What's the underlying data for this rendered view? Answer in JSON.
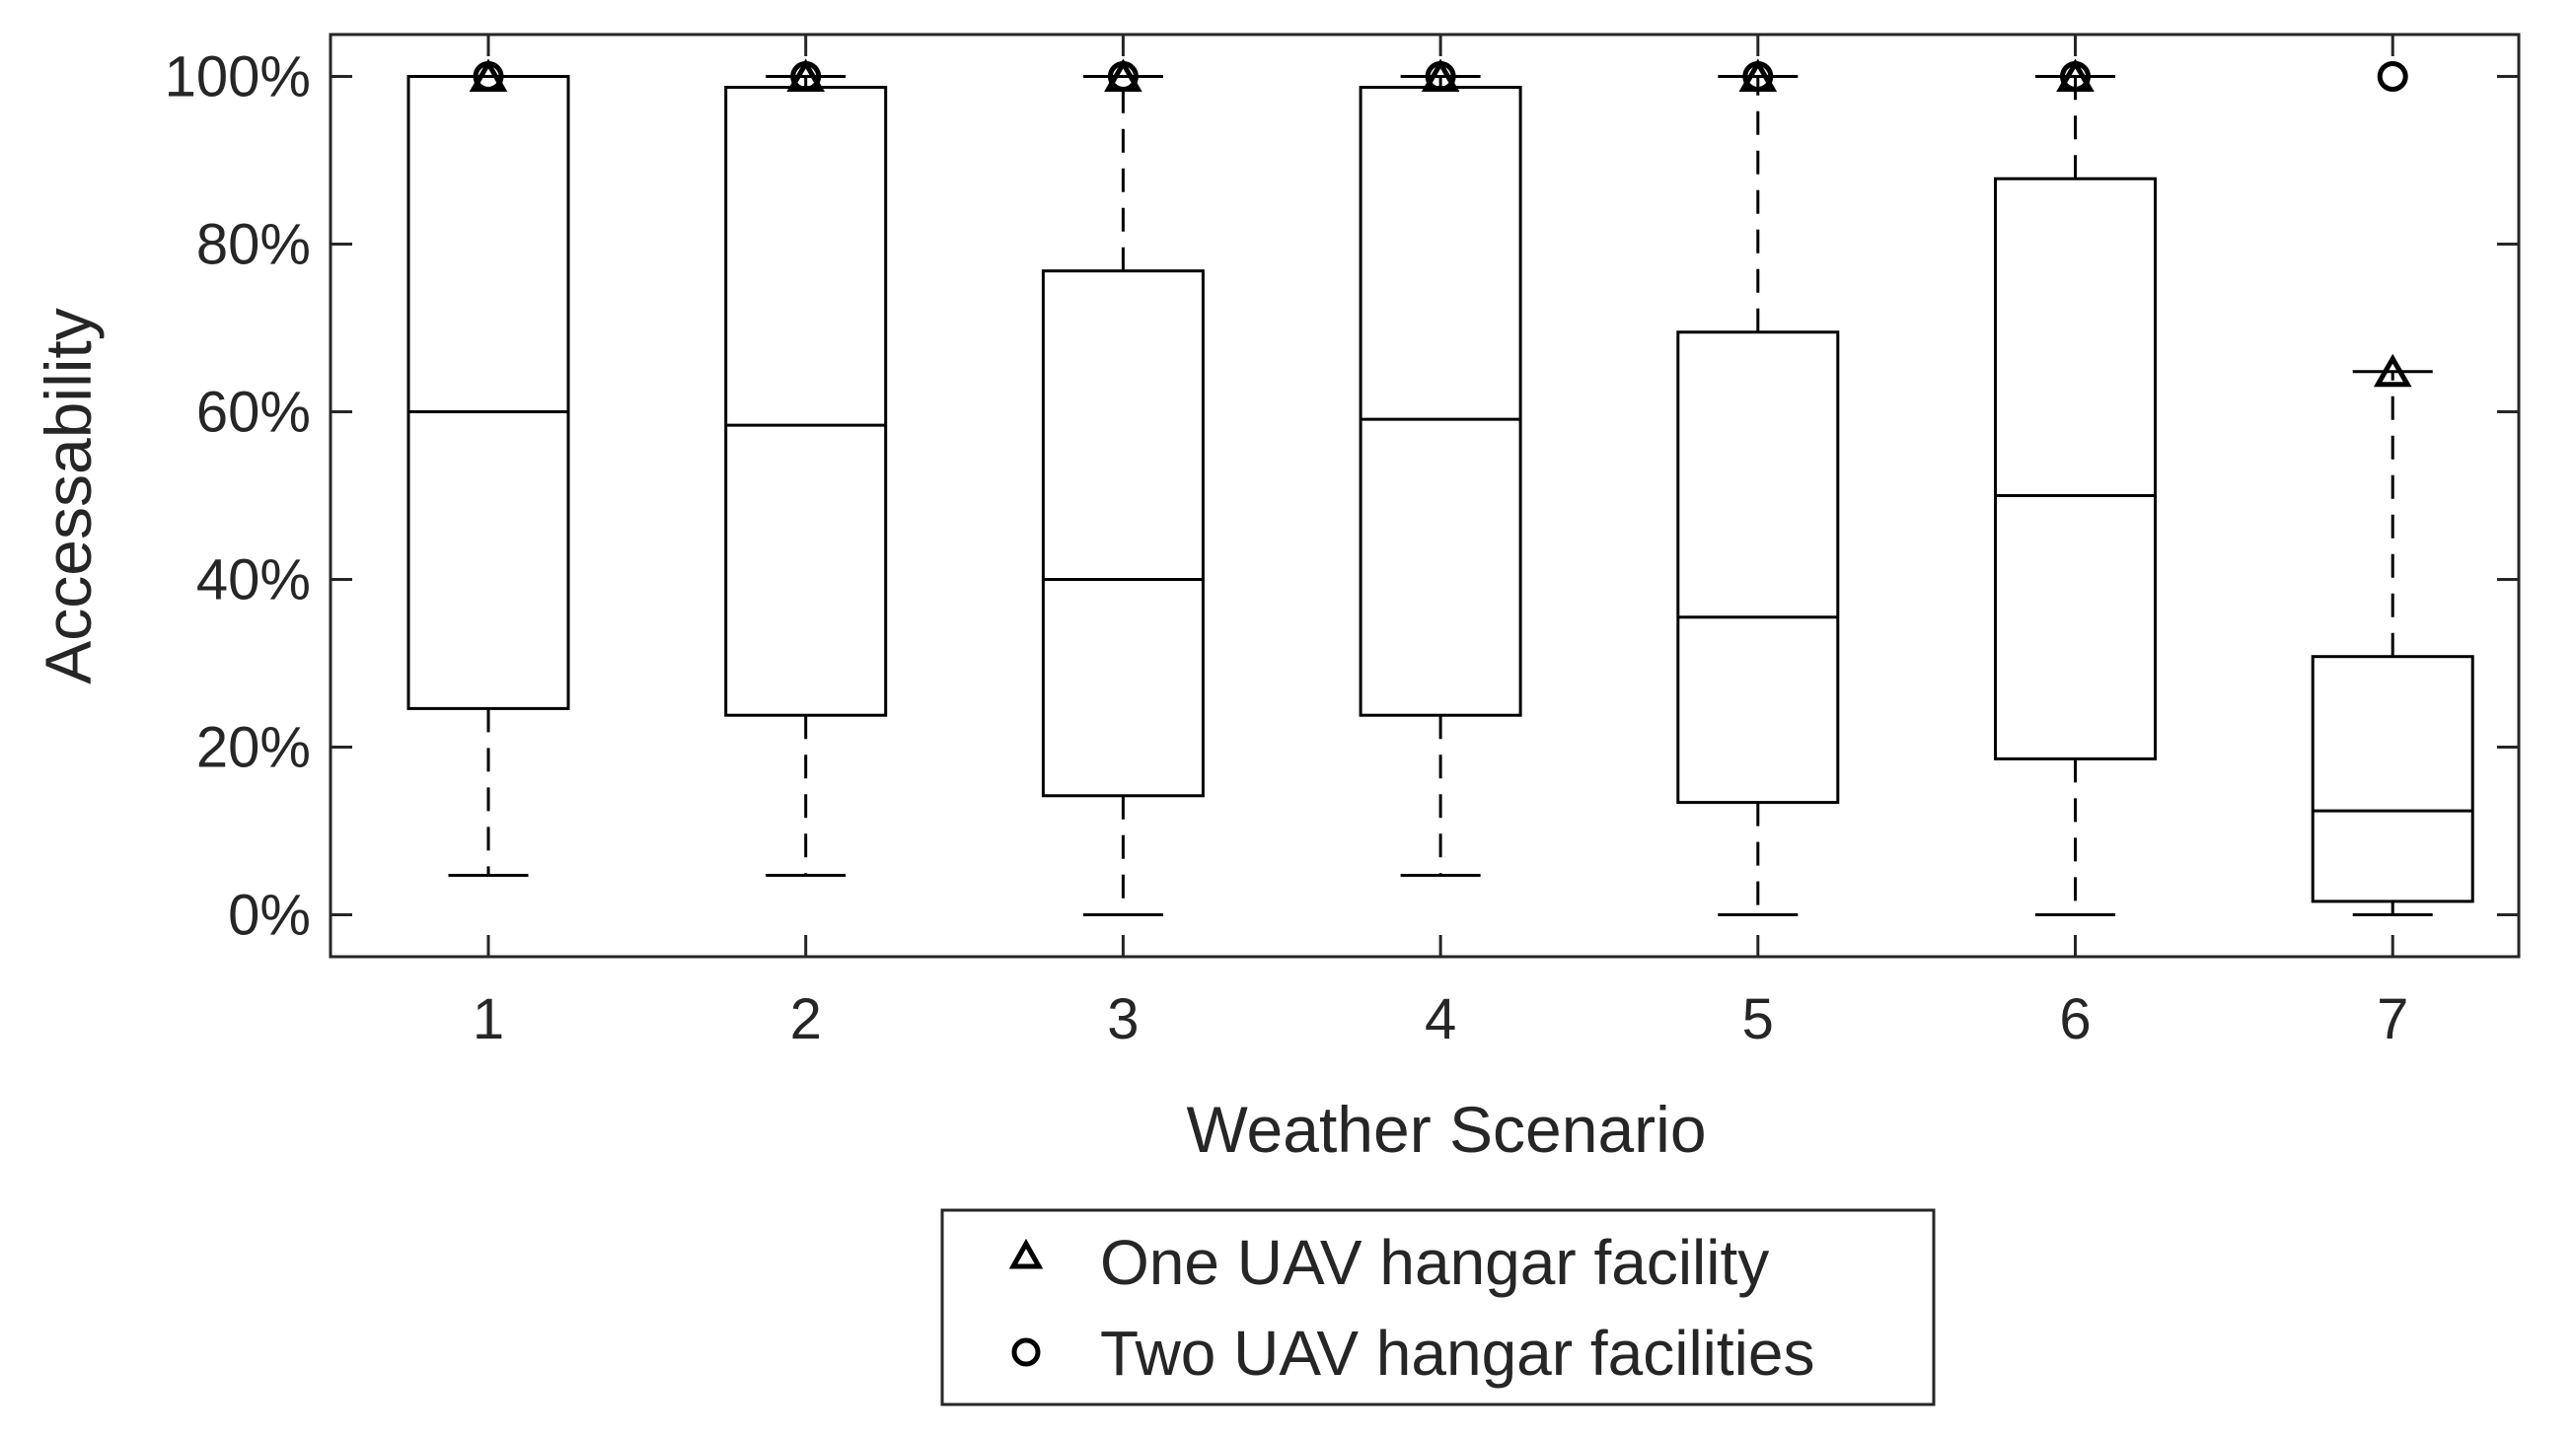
{
  "chart_data": {
    "type": "box",
    "xlabel": "Weather Scenario",
    "ylabel": "Accessability",
    "ylim": [
      -5,
      105
    ],
    "yticks": [
      0,
      20,
      40,
      60,
      80,
      100
    ],
    "ytick_labels": [
      "0%",
      "20%",
      "40%",
      "60%",
      "80%",
      "100%"
    ],
    "xtick_labels": [
      "1",
      "2",
      "3",
      "4",
      "5",
      "6",
      "7"
    ],
    "categories": [
      "1",
      "2",
      "3",
      "4",
      "5",
      "6",
      "7"
    ],
    "boxes": [
      {
        "scenario": "1",
        "whisker_low": 4.7,
        "q1": 24.6,
        "median": 60.0,
        "q3": 100.0,
        "whisker_high": 100.0
      },
      {
        "scenario": "2",
        "whisker_low": 4.7,
        "q1": 23.8,
        "median": 58.4,
        "q3": 98.7,
        "whisker_high": 100.0
      },
      {
        "scenario": "3",
        "whisker_low": 0.0,
        "q1": 14.2,
        "median": 40.0,
        "q3": 76.8,
        "whisker_high": 100.0
      },
      {
        "scenario": "4",
        "whisker_low": 4.7,
        "q1": 23.8,
        "median": 59.1,
        "q3": 98.7,
        "whisker_high": 100.0
      },
      {
        "scenario": "5",
        "whisker_low": 0.0,
        "q1": 13.4,
        "median": 35.5,
        "q3": 69.5,
        "whisker_high": 100.0
      },
      {
        "scenario": "6",
        "whisker_low": 0.0,
        "q1": 18.6,
        "median": 50.0,
        "q3": 87.8,
        "whisker_high": 100.0
      },
      {
        "scenario": "7",
        "whisker_low": 0.0,
        "q1": 1.6,
        "median": 12.4,
        "q3": 30.8,
        "whisker_high": 64.8
      }
    ],
    "series": [
      {
        "name": "One UAV hangar facility",
        "marker": "triangle",
        "values": [
          100,
          100,
          100,
          100,
          100,
          100,
          64.8
        ]
      },
      {
        "name": "Two UAV hangar facilities",
        "marker": "circle",
        "values": [
          100,
          100,
          100,
          100,
          100,
          100,
          100
        ]
      }
    ],
    "legend_position": "bottom-center",
    "grid": false,
    "colors": {
      "line": "#000000",
      "text": "#262626",
      "background": "#ffffff"
    }
  }
}
